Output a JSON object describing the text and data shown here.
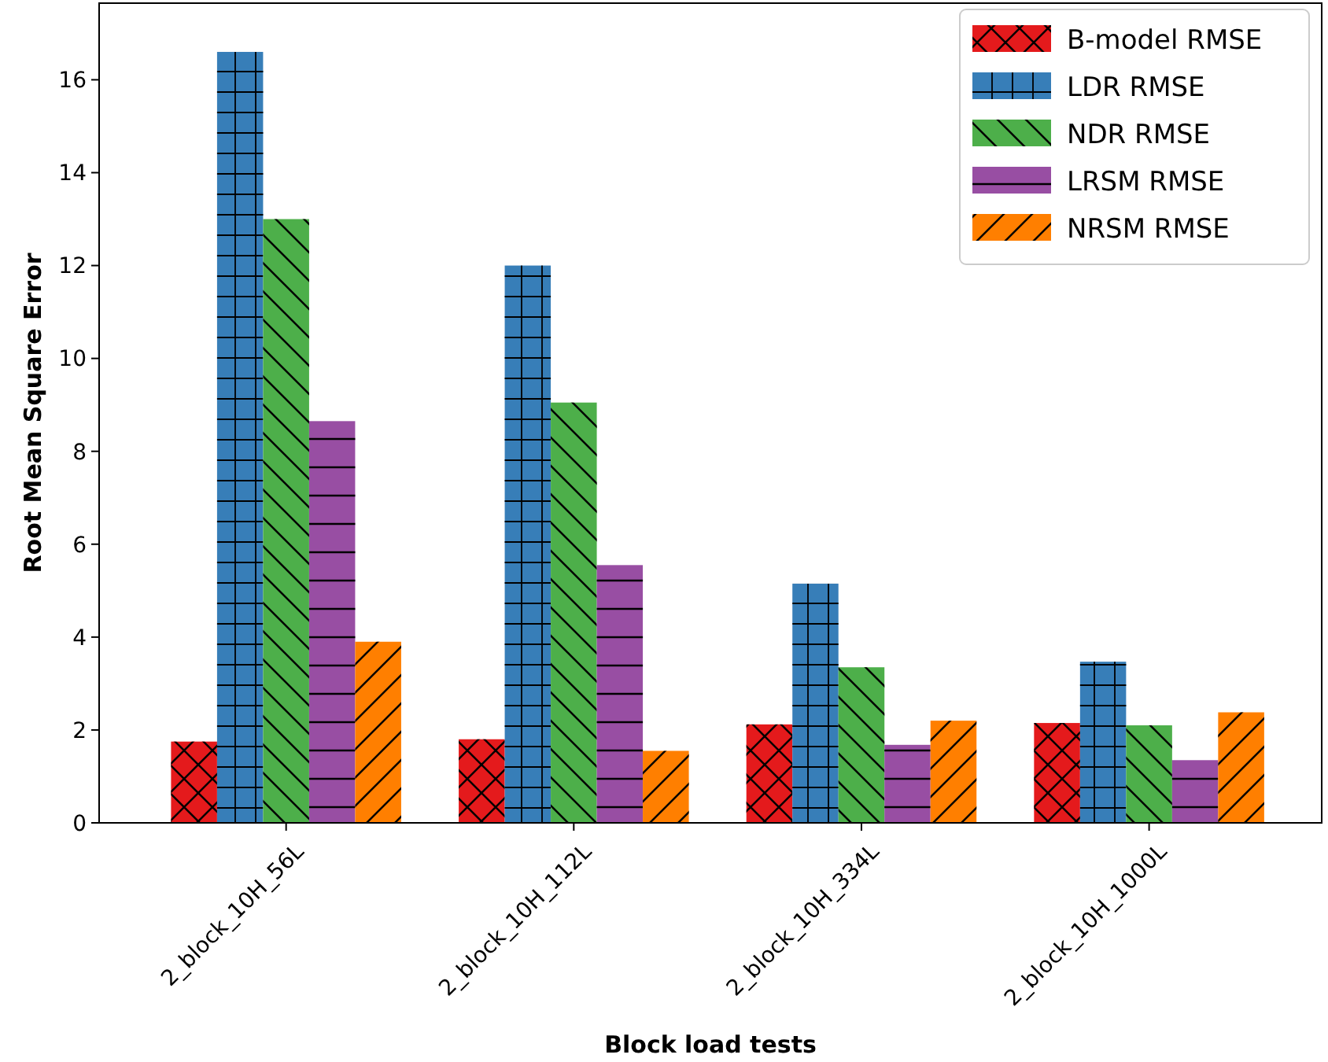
{
  "chart_data": {
    "type": "bar",
    "xlabel": "Block load tests",
    "ylabel": "Root Mean Square Error",
    "categories": [
      "2_block_10H_56L",
      "2_block_10H_112L",
      "2_block_10H_334L",
      "2_block_10H_1000L"
    ],
    "series": [
      {
        "name": "B-model RMSE",
        "color": "#e41a1c",
        "values": [
          1.75,
          1.8,
          2.12,
          2.15
        ]
      },
      {
        "name": "LDR RMSE",
        "color": "#377eb8",
        "values": [
          16.6,
          12.0,
          5.15,
          3.47
        ]
      },
      {
        "name": "NDR RMSE",
        "color": "#4daf4a",
        "values": [
          13.0,
          9.05,
          3.35,
          2.1
        ]
      },
      {
        "name": "LRSM RMSE",
        "color": "#984ea3",
        "values": [
          8.65,
          5.55,
          1.68,
          1.35
        ]
      },
      {
        "name": "NRSM RMSE",
        "color": "#ff7f00",
        "values": [
          3.9,
          1.55,
          2.2,
          2.38
        ]
      }
    ],
    "ylim": [
      0,
      17.65
    ],
    "yticks": [
      0,
      2,
      4,
      6,
      8,
      10,
      12,
      14,
      16
    ],
    "grid": false,
    "legend": "top right"
  }
}
